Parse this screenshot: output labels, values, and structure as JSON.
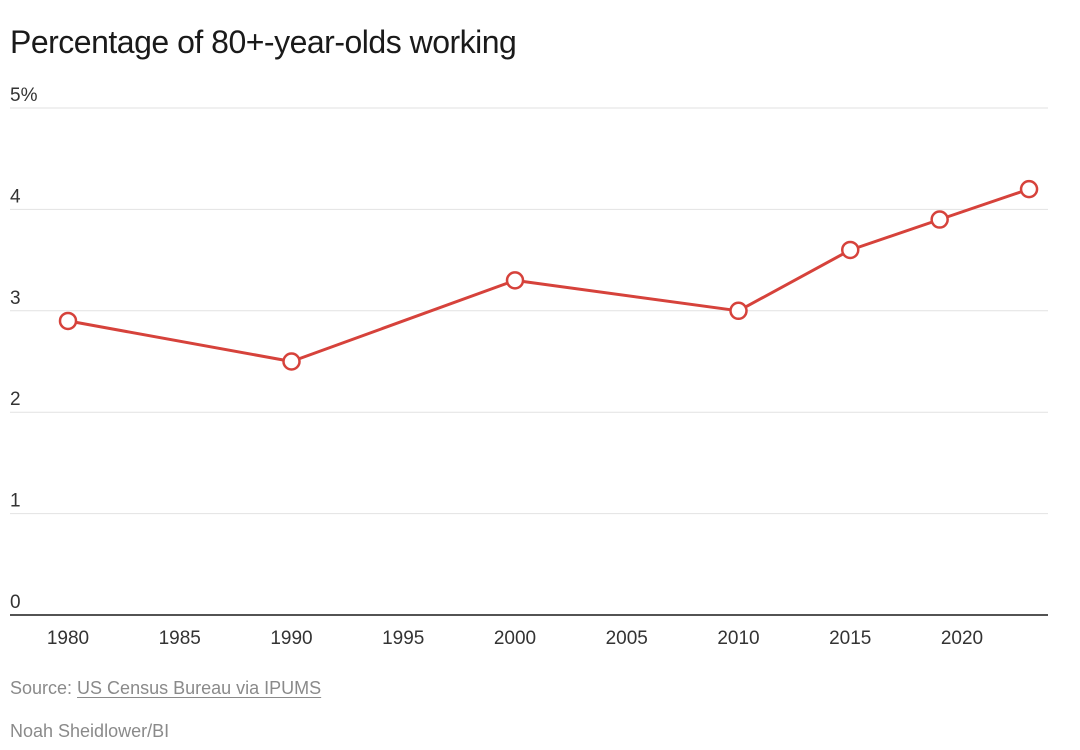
{
  "chart_data": {
    "type": "line",
    "title": "Percentage of 80+-year-olds working",
    "xlabel": "",
    "ylabel": "",
    "xlim": [
      1977.5,
      2024.5
    ],
    "ylim": [
      0,
      5
    ],
    "x_ticks": [
      1980,
      1985,
      1990,
      1995,
      2000,
      2005,
      2010,
      2015,
      2020
    ],
    "y_ticks": [
      0,
      1,
      2,
      3,
      4,
      5
    ],
    "y_tick_labels": [
      "0",
      "1",
      "2",
      "3",
      "4",
      "5%"
    ],
    "grid": true,
    "legend": "none",
    "series": [
      {
        "x": [
          1980,
          1990,
          2000,
          2010,
          2015,
          2019,
          2023
        ],
        "y": [
          2.9,
          2.5,
          3.3,
          3.0,
          3.6,
          3.9,
          4.2
        ],
        "color": "#d6423b",
        "marker": "open-circle"
      }
    ]
  },
  "footer": {
    "source_prefix": "Source: ",
    "source_link": "US Census Bureau via IPUMS",
    "credit": "Noah Sheidlower/BI"
  }
}
